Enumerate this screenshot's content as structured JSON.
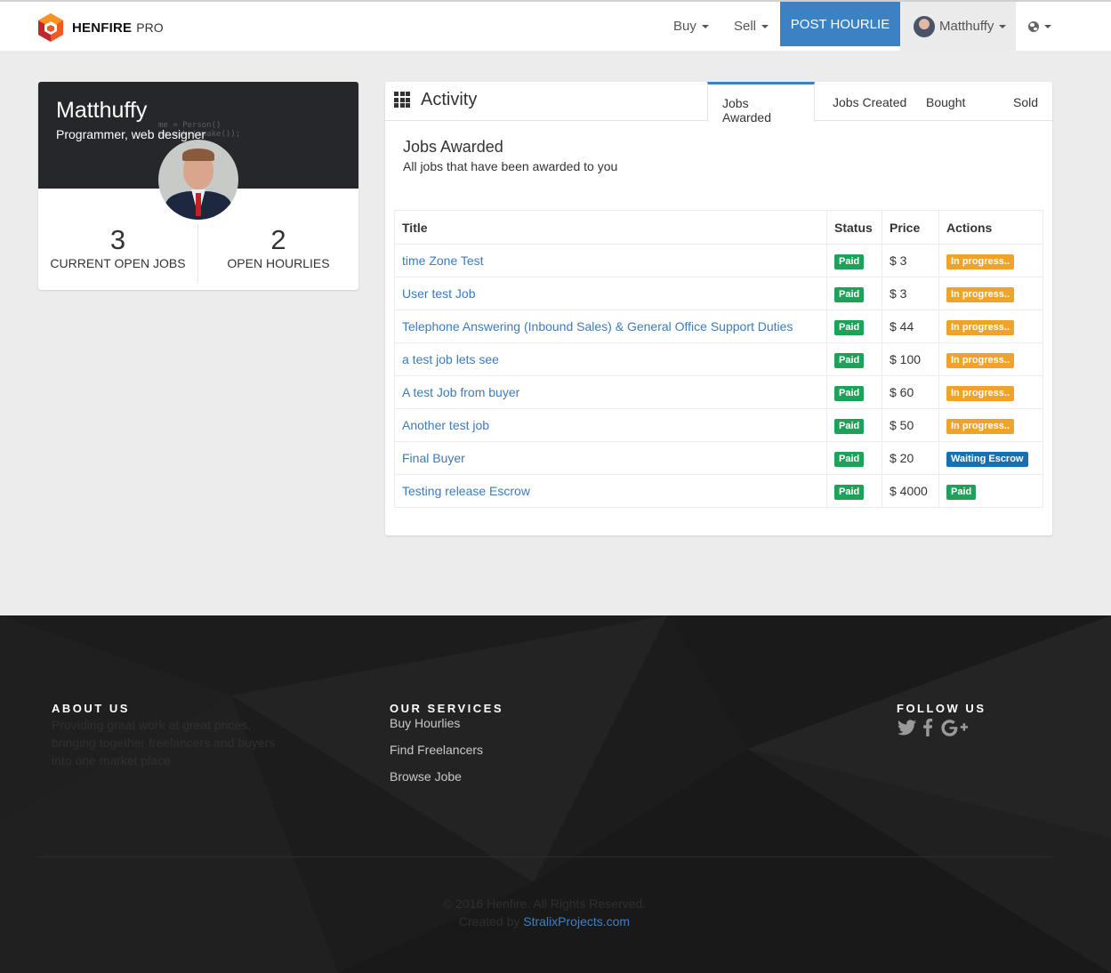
{
  "navbar": {
    "brand": "HENFIRE",
    "brand_suffix": "PRO",
    "buy": "Buy",
    "sell": "Sell",
    "post_hourlie": "POST HOURLIE",
    "user": "Matthuffy"
  },
  "profile": {
    "name": "Matthuffy",
    "role": "Programmer, web designer",
    "code_snippet": "me = Person()\nme.make(awake());",
    "stats": [
      {
        "value": "3",
        "label": "CURRENT OPEN JOBS"
      },
      {
        "value": "2",
        "label": "OPEN HOURLIES"
      }
    ]
  },
  "activity": {
    "title": "Activity",
    "tabs": [
      "Jobs Awarded",
      "Jobs Created",
      "Bought",
      "Sold"
    ],
    "section_title": "Jobs Awarded",
    "section_subtitle": "All jobs that have been awarded to you",
    "columns": [
      "Title",
      "Status",
      "Price",
      "Actions"
    ],
    "rows": [
      {
        "title": "time Zone Test",
        "status": "Paid",
        "price": "$ 3",
        "action": "In progress..",
        "action_color": "#f0a32a"
      },
      {
        "title": "User test Job",
        "status": "Paid",
        "price": "$ 3",
        "action": "In progress..",
        "action_color": "#f0a32a"
      },
      {
        "title": "Telephone Answering (Inbound Sales) & General Office Support Duties",
        "status": "Paid",
        "price": "$ 44",
        "action": "In progress..",
        "action_color": "#f0a32a"
      },
      {
        "title": "a test job lets see",
        "status": "Paid",
        "price": "$ 100",
        "action": "In progress..",
        "action_color": "#f0a32a"
      },
      {
        "title": "A test Job from buyer",
        "status": "Paid",
        "price": "$ 60",
        "action": "In progress..",
        "action_color": "#f0a32a"
      },
      {
        "title": "Another test job",
        "status": "Paid",
        "price": "$ 50",
        "action": "In progress..",
        "action_color": "#f0a32a"
      },
      {
        "title": "Final Buyer",
        "status": "Paid",
        "price": "$ 20",
        "action": "Waiting Escrow",
        "action_color": "#1a6fb0"
      },
      {
        "title": "Testing release Escrow",
        "status": "Paid",
        "price": "$ 4000",
        "action": "Paid",
        "action_color": "#1ea25a"
      }
    ]
  },
  "footer": {
    "about_heading": "ABOUT US",
    "about_text": "Providing great work at great prices, bringing together freelancers and buyers into one market place",
    "services_heading": "OUR SERVICES",
    "services": [
      "Buy Hourlies",
      "Find Freelancers",
      "Browse Jobe"
    ],
    "follow_heading": "FOLLOW US",
    "social_icons": [
      "twitter-icon",
      "facebook-icon",
      "google-plus-icon"
    ],
    "copyright": "© 2016 Henfire. All Rights Reserved.",
    "created_by": "Created by",
    "creator_link": "StralixProjects.com"
  },
  "colors": {
    "primary": "#3b82c4",
    "success": "#1ea25a",
    "warning": "#f0a32a",
    "info": "#1a6fb0",
    "footer_bg": "#1c1c1d"
  }
}
